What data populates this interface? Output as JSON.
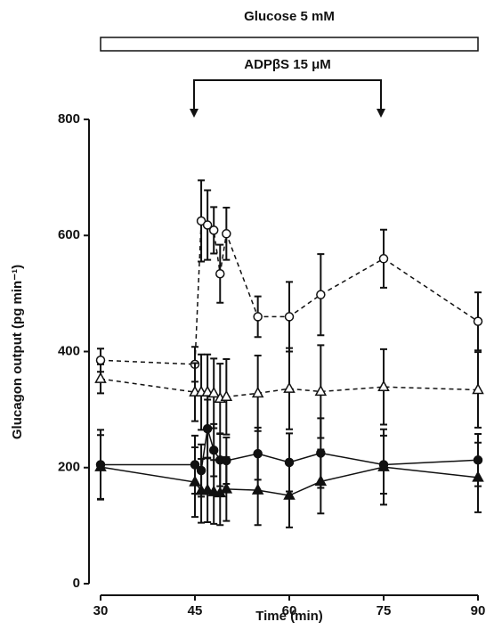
{
  "chart_data": {
    "type": "line",
    "annotations": [
      "Glucose 5 mM",
      "ADPβS 15 μM"
    ],
    "xlabel": "Time (min)",
    "ylabel": "Glucagon output (pg min⁻¹)",
    "x": [
      30,
      45,
      46,
      47,
      48,
      49,
      50,
      55,
      60,
      65,
      75,
      90
    ],
    "xlim": [
      30,
      90
    ],
    "xticks": [
      30,
      45,
      60,
      75,
      90
    ],
    "ylim": [
      0,
      800
    ],
    "yticks": [
      0,
      200,
      400,
      600,
      800
    ],
    "series": [
      {
        "color": "#111",
        "marker": "circle",
        "filled": false,
        "dashed": true,
        "values": [
          385,
          378,
          625,
          618,
          609,
          534,
          603,
          460,
          460,
          498,
          560,
          452
        ],
        "errors": [
          20,
          30,
          70,
          60,
          40,
          50,
          45,
          35,
          60,
          70,
          50,
          50
        ]
      },
      {
        "color": "#111",
        "marker": "triangle",
        "filled": false,
        "dashed": true,
        "values": [
          353,
          330,
          330,
          330,
          328,
          319,
          322,
          328,
          336,
          331,
          339,
          334
        ],
        "errors": [
          25,
          50,
          65,
          65,
          60,
          60,
          65,
          65,
          70,
          80,
          65,
          65
        ]
      },
      {
        "color": "#111",
        "marker": "circle",
        "filled": true,
        "dashed": false,
        "values": [
          205,
          205,
          195,
          267,
          230,
          213,
          212,
          224,
          209,
          225,
          205,
          213
        ],
        "errors": [
          60,
          50,
          45,
          50,
          45,
          45,
          40,
          45,
          50,
          60,
          50,
          45
        ]
      },
      {
        "color": "#111",
        "marker": "triangle",
        "filled": true,
        "dashed": false,
        "values": [
          201,
          175,
          160,
          161,
          158,
          156,
          163,
          161,
          152,
          176,
          201,
          183
        ],
        "errors": [
          55,
          60,
          55,
          55,
          55,
          55,
          55,
          60,
          55,
          55,
          65,
          60
        ]
      }
    ]
  }
}
